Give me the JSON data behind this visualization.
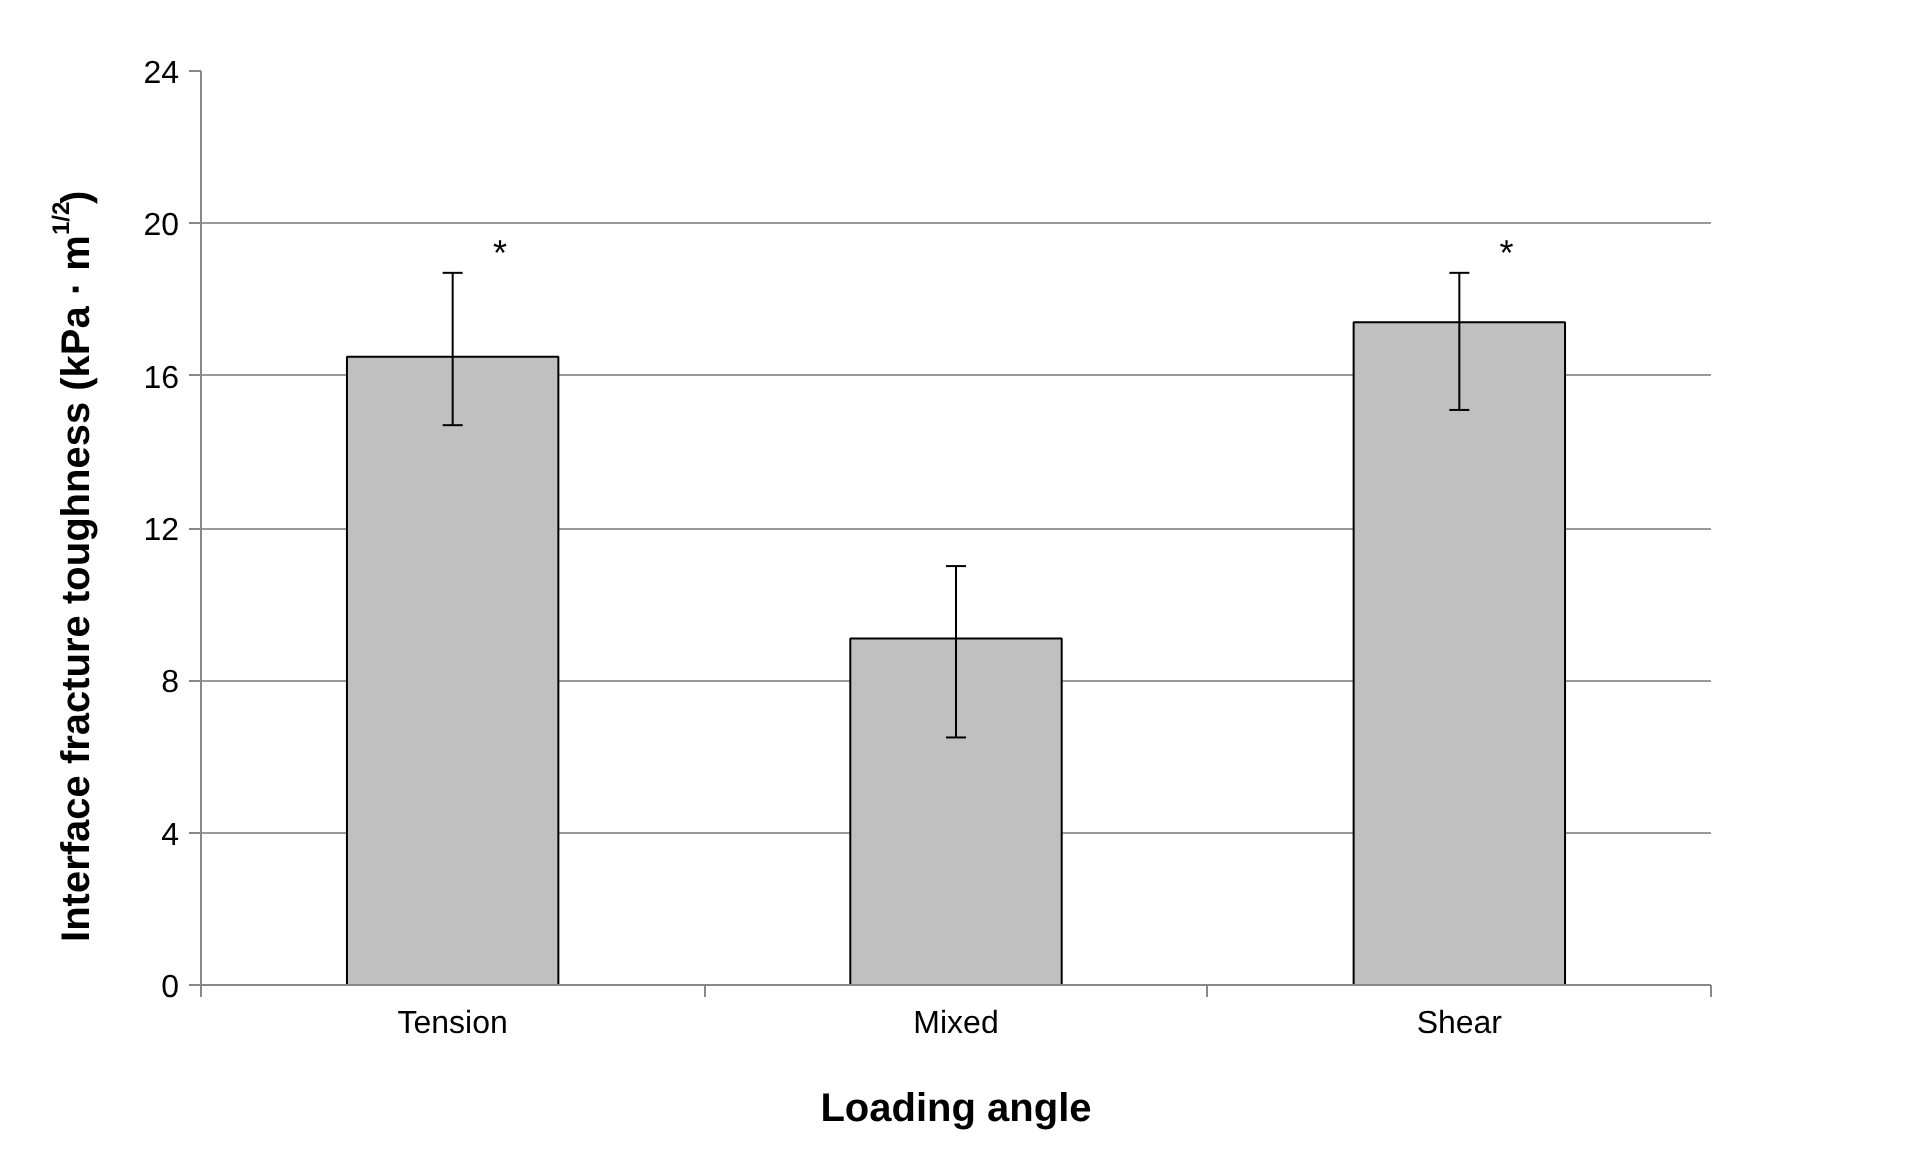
{
  "chart_data": {
    "type": "bar",
    "xlabel": "Loading angle",
    "ylabel": "Interface fracture toughness (kPa · m$^{1/2}$)",
    "categories": [
      "Tension",
      "Mixed",
      "Shear"
    ],
    "values": [
      16.5,
      9.1,
      17.4
    ],
    "color": "#c0c0c0",
    "errors": [
      [
        14.7,
        18.7
      ],
      [
        6.5,
        11.0
      ],
      [
        15.1,
        18.7
      ]
    ],
    "ylim": [
      0,
      24
    ],
    "yticks": [
      0,
      4,
      8,
      12,
      16,
      20,
      24
    ],
    "grid": "y",
    "annotations": [
      {
        "text": "*",
        "x": "Tension",
        "y": 18.7
      },
      {
        "text": "*",
        "x": "Shear",
        "y": 18.7
      }
    ]
  }
}
